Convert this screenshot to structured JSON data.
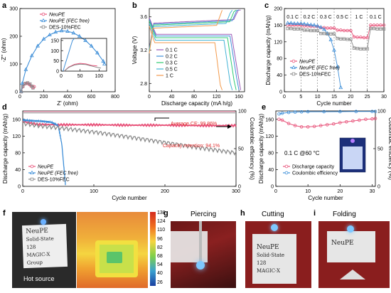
{
  "colors": {
    "pink": "#e8537a",
    "blue": "#3f8fd8",
    "gray": "#8a8a8a",
    "cyan": "#43b3d6",
    "orange": "#f39a4c",
    "red_text": "#e03030",
    "dark_text": "#333333"
  },
  "chart_data": [
    {
      "panel": "a",
      "type": "line",
      "title": "",
      "xlabel": "Z' (ohm)",
      "ylabel": "-Z'' (ohm)",
      "xlim": [
        0,
        800
      ],
      "ylim": [
        0,
        300
      ],
      "xticks": [
        "0",
        "200",
        "400",
        "600",
        "800"
      ],
      "yticks": [
        "0",
        "100",
        "200",
        "300"
      ],
      "legend": [
        "NeuPE",
        "NeuPE (FEC free)",
        "DES-10%FEC"
      ],
      "inset": {
        "xticks": [
          "0",
          "50",
          "100"
        ],
        "yticks": [
          "0",
          "50",
          "100",
          "150"
        ],
        "xlim": [
          0,
          120
        ],
        "ylim": [
          0,
          160
        ]
      },
      "series": [
        {
          "name": "NeuPE",
          "x": [
            10,
            25,
            40,
            60,
            80,
            95,
            110,
            120
          ],
          "y": [
            0,
            18,
            28,
            30,
            26,
            20,
            16,
            18
          ]
        },
        {
          "name": "NeuPE (FEC free)",
          "x": [
            10,
            20,
            50,
            100,
            150,
            200,
            250,
            300,
            350,
            400,
            450,
            500,
            550,
            600,
            650,
            700,
            710
          ],
          "y": [
            0,
            30,
            80,
            130,
            165,
            190,
            205,
            215,
            220,
            218,
            212,
            200,
            185,
            165,
            140,
            110,
            100
          ]
        },
        {
          "name": "DES-10%FEC",
          "x": [
            10,
            25,
            45,
            65,
            85,
            100,
            110
          ],
          "y": [
            0,
            20,
            30,
            32,
            28,
            20,
            14
          ]
        }
      ],
      "inset_series": [
        {
          "name": "NeuPE",
          "x": [
            8,
            20,
            35,
            50,
            65,
            80,
            95
          ],
          "y": [
            0,
            20,
            33,
            38,
            35,
            28,
            25
          ]
        },
        {
          "name": "NeuPE (FEC free)",
          "x": [
            5,
            10,
            15,
            20,
            25,
            30,
            35
          ],
          "y": [
            0,
            30,
            60,
            90,
            120,
            150,
            160
          ]
        },
        {
          "name": "DES-10%FEC",
          "x": [
            8,
            20,
            35,
            50,
            65,
            80,
            95,
            105
          ],
          "y": [
            0,
            18,
            30,
            34,
            32,
            25,
            18,
            15
          ]
        }
      ]
    },
    {
      "panel": "b",
      "type": "line",
      "title": "",
      "xlabel": "Discharge capacity (mA h/g)",
      "ylabel": "Voltage (V)",
      "xlim": [
        0,
        170
      ],
      "ylim": [
        2.7,
        3.7
      ],
      "xticks": [
        "0",
        "40",
        "80",
        "120",
        "160"
      ],
      "yticks": [
        "2.8",
        "3.2",
        "3.6"
      ],
      "legend": [
        "0.1 C",
        "0.2 C",
        "0.3 C",
        "0.5 C",
        "1 C"
      ],
      "series": [
        {
          "name": "0.1 C",
          "cap": 163,
          "plateau": 3.42
        },
        {
          "name": "0.2 C",
          "cap": 160,
          "plateau": 3.4
        },
        {
          "name": "0.3 C",
          "cap": 155,
          "plateau": 3.38
        },
        {
          "name": "0.5 C",
          "cap": 148,
          "plateau": 3.35
        },
        {
          "name": "1 C",
          "cap": 130,
          "plateau": 3.32
        }
      ]
    },
    {
      "panel": "c",
      "type": "line",
      "title": "",
      "xlabel": "Cycle number",
      "ylabel": "Discharge capacity (mAh/g)",
      "xlim": [
        0,
        30
      ],
      "ylim": [
        0,
        200
      ],
      "xticks": [
        "0",
        "5",
        "10",
        "15",
        "20",
        "25",
        "30"
      ],
      "yticks": [
        "0",
        "40",
        "80",
        "120",
        "160",
        "200"
      ],
      "rate_labels": [
        "0.1 C",
        "0.2 C",
        "0.3 C",
        "0.5 C",
        "1 C",
        "0.1 C"
      ],
      "legend": [
        "NeuPE",
        "NeuPE (FEC free)",
        "DES-10%FEC"
      ],
      "series": [
        {
          "name": "NeuPE",
          "x": [
            1,
            2,
            3,
            4,
            5,
            6,
            7,
            8,
            9,
            10,
            11,
            12,
            13,
            14,
            15,
            16,
            17,
            18,
            19,
            20,
            21,
            22,
            23,
            24,
            25,
            26,
            27,
            28,
            29,
            30
          ],
          "y": [
            160,
            160,
            160,
            160,
            160,
            158,
            158,
            157,
            157,
            157,
            154,
            154,
            153,
            153,
            153,
            148,
            148,
            147,
            147,
            147,
            132,
            131,
            131,
            130,
            130,
            160,
            160,
            160,
            160,
            160
          ]
        },
        {
          "name": "NeuPE (FEC free)",
          "x": [
            1,
            2,
            3,
            4,
            5,
            6,
            7,
            8,
            9,
            10,
            11,
            12,
            13,
            14,
            15,
            16,
            17
          ],
          "y": [
            165,
            165,
            164,
            164,
            164,
            163,
            162,
            161,
            160,
            158,
            155,
            150,
            140,
            125,
            100,
            60,
            10
          ]
        },
        {
          "name": "DES-10%FEC",
          "x": [
            1,
            2,
            3,
            4,
            5,
            6,
            7,
            8,
            9,
            10,
            11,
            12,
            13,
            14,
            15,
            16,
            17,
            18,
            19,
            20,
            21,
            22,
            23,
            24,
            25,
            26,
            27,
            28,
            29,
            30
          ],
          "y": [
            152,
            152,
            151,
            151,
            151,
            148,
            148,
            147,
            147,
            147,
            140,
            140,
            139,
            139,
            139,
            128,
            127,
            127,
            126,
            126,
            105,
            104,
            103,
            103,
            103,
            152,
            152,
            151,
            151,
            151
          ]
        }
      ]
    },
    {
      "panel": "d",
      "type": "line",
      "title": "",
      "xlabel": "Cycle number",
      "ylabel": "Discharge capacity (mAh/g)",
      "y2label": "Coulombic efficiency (%)",
      "xlim": [
        0,
        300
      ],
      "ylim": [
        0,
        180
      ],
      "y2lim": [
        0,
        100
      ],
      "xticks": [
        "0",
        "100",
        "200",
        "300"
      ],
      "yticks": [
        "0",
        "40",
        "80",
        "120",
        "160"
      ],
      "y2ticks": [
        "0",
        "50",
        "100"
      ],
      "legend": [
        "NeuPE",
        "NeuPE (FEC free)",
        "DES-10%FEC"
      ],
      "annotations": [
        "Average CE: 99.86%",
        "Capacity retention: 94.1%"
      ],
      "series": [
        {
          "name": "NeuPE",
          "x": [
            0,
            20,
            50,
            100,
            150,
            200,
            250,
            300
          ],
          "y": [
            155,
            148,
            147,
            147,
            146,
            146,
            145,
            145
          ]
        },
        {
          "name": "NeuPE (FEC free)",
          "x": [
            0,
            10,
            20,
            30,
            40,
            50,
            55,
            60
          ],
          "y": [
            158,
            157,
            156,
            155,
            153,
            145,
            100,
            5
          ]
        },
        {
          "name": "DES-10%FEC",
          "x": [
            0,
            20,
            50,
            100,
            150,
            200,
            250,
            300
          ],
          "y": [
            150,
            145,
            140,
            130,
            118,
            105,
            92,
            80
          ]
        }
      ],
      "ce": {
        "value": 99.86
      }
    },
    {
      "panel": "e",
      "type": "line",
      "title": "",
      "xlabel": "Cycle number",
      "ylabel": "Discharge capacity (mAh/g)",
      "y2label": "Coulombic efficiency (%)",
      "xlim": [
        0,
        31
      ],
      "ylim": [
        0,
        180
      ],
      "y2lim": [
        0,
        100
      ],
      "xticks": [
        "0",
        "10",
        "20",
        "30"
      ],
      "yticks": [
        "0",
        "40",
        "80",
        "120",
        "160"
      ],
      "y2ticks": [
        "0",
        "50",
        "100"
      ],
      "legend": [
        "Discharge capacity",
        "Coulombic efficiency"
      ],
      "annotation": "0.1 C @60 °C",
      "series": [
        {
          "name": "Discharge capacity",
          "x": [
            1,
            2,
            4,
            6,
            8,
            10,
            12,
            14,
            16,
            18,
            20,
            22,
            24,
            26,
            28,
            30,
            31
          ],
          "y": [
            160,
            158,
            150,
            145,
            142,
            142,
            143,
            145,
            147,
            149,
            152,
            154,
            156,
            158,
            160,
            161,
            162
          ]
        },
        {
          "name": "Coulombic efficiency",
          "x": [
            1,
            2,
            4,
            6,
            8,
            10,
            15,
            20,
            25,
            30,
            31
          ],
          "y": [
            96,
            97,
            98,
            98.5,
            98.8,
            99,
            99,
            99.1,
            99.2,
            99.3,
            99.3
          ]
        }
      ]
    }
  ],
  "panel_letters": {
    "a": "a",
    "b": "b",
    "c": "c",
    "d": "d",
    "e": "e",
    "f": "f",
    "g": "g",
    "h": "h",
    "i": "i"
  },
  "photos": {
    "f_caption": "Hot source",
    "f_colorbar": [
      "138",
      "124",
      "110",
      "96",
      "82",
      "68",
      "54",
      "40",
      "26"
    ],
    "g_title": "Piercing",
    "h_title": "Cutting",
    "i_title": "Folding",
    "note_text": "NeuPE",
    "note_lines": [
      "Solid-State 128",
      "MAGIC-X",
      "Group"
    ]
  }
}
